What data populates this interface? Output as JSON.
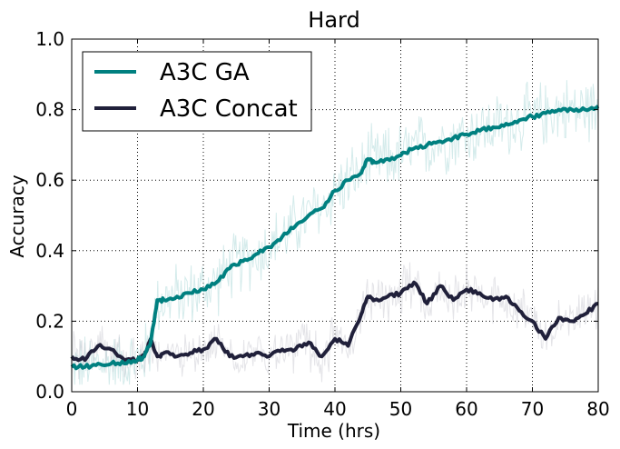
{
  "chart_data": {
    "type": "line",
    "title": "Hard",
    "xlabel": "Time (hrs)",
    "ylabel": "Accuracy",
    "xlim": [
      0,
      80
    ],
    "ylim": [
      0.0,
      1.0
    ],
    "xticks": [
      "0",
      "10",
      "20",
      "30",
      "40",
      "50",
      "60",
      "70",
      "80"
    ],
    "yticks": [
      "0.0",
      "0.2",
      "0.4",
      "0.6",
      "0.8",
      "1.0"
    ],
    "grid": true,
    "legend_position": "top-left",
    "x": [
      0,
      2,
      4,
      6,
      8,
      10,
      11,
      12,
      13,
      14,
      16,
      18,
      20,
      22,
      24,
      26,
      28,
      30,
      32,
      34,
      36,
      38,
      40,
      42,
      44,
      45,
      46,
      48,
      50,
      52,
      54,
      56,
      58,
      60,
      62,
      64,
      66,
      68,
      70,
      72,
      74,
      76,
      78,
      80
    ],
    "series": [
      {
        "name": "A3C GA",
        "color": "#008080",
        "values": [
          0.07,
          0.07,
          0.08,
          0.08,
          0.08,
          0.09,
          0.1,
          0.14,
          0.26,
          0.26,
          0.27,
          0.28,
          0.29,
          0.31,
          0.35,
          0.37,
          0.39,
          0.41,
          0.44,
          0.47,
          0.5,
          0.52,
          0.57,
          0.6,
          0.62,
          0.66,
          0.65,
          0.66,
          0.67,
          0.69,
          0.7,
          0.71,
          0.72,
          0.73,
          0.74,
          0.75,
          0.76,
          0.77,
          0.78,
          0.79,
          0.8,
          0.8,
          0.8,
          0.81
        ]
      },
      {
        "name": "A3C Concat",
        "color": "#20203a",
        "values": [
          0.1,
          0.09,
          0.13,
          0.12,
          0.09,
          0.09,
          0.1,
          0.15,
          0.1,
          0.11,
          0.1,
          0.11,
          0.12,
          0.15,
          0.1,
          0.1,
          0.11,
          0.1,
          0.12,
          0.12,
          0.14,
          0.1,
          0.15,
          0.13,
          0.22,
          0.27,
          0.26,
          0.27,
          0.28,
          0.31,
          0.25,
          0.3,
          0.26,
          0.29,
          0.28,
          0.26,
          0.27,
          0.23,
          0.2,
          0.15,
          0.21,
          0.2,
          0.22,
          0.25
        ]
      }
    ]
  }
}
